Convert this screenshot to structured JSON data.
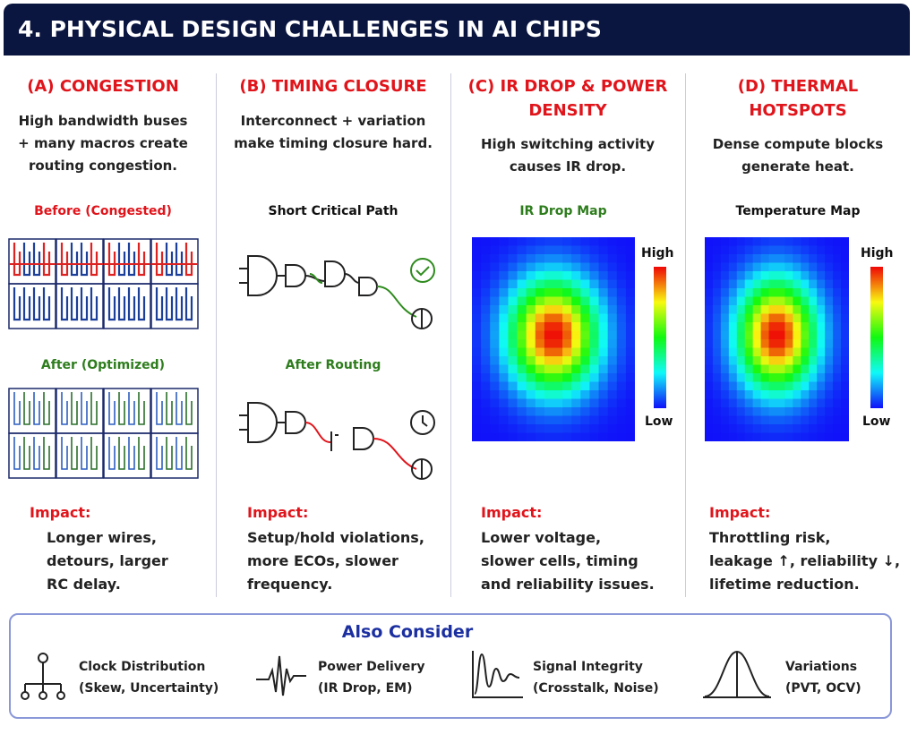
{
  "header": {
    "title": "4. PHYSICAL DESIGN CHALLENGES IN AI CHIPS"
  },
  "columns": [
    {
      "title": [
        "(A) CONGESTION"
      ],
      "description": [
        "High bandwidth buses",
        "+ many macros create",
        "routing congestion."
      ],
      "figures": [
        {
          "label": "Before (Congested)"
        },
        {
          "label": "After (Optimized)"
        }
      ],
      "impact_label": "Impact:",
      "impact": [
        "Longer wires,",
        "detours, larger",
        "RC delay."
      ]
    },
    {
      "title": [
        "(B) TIMING CLOSURE"
      ],
      "description": [
        "Interconnect + variation",
        "make timing closure hard."
      ],
      "figures": [
        {
          "label": "Short Critical Path"
        },
        {
          "label": "After Routing"
        }
      ],
      "impact_label": "Impact:",
      "impact": [
        "Setup/hold violations,",
        "more ECOs, slower",
        "frequency."
      ]
    },
    {
      "title": [
        "(C) IR DROP & POWER",
        "DENSITY"
      ],
      "description": [
        "High switching activity",
        "causes IR drop."
      ],
      "figures": [
        {
          "label": "IR Drop Map",
          "high": "High",
          "low": "Low"
        }
      ],
      "impact_label": "Impact:",
      "impact": [
        "Lower voltage,",
        "slower cells, timing",
        "and reliability issues."
      ]
    },
    {
      "title": [
        "(D) THERMAL",
        "HOTSPOTS"
      ],
      "description": [
        "Dense compute blocks",
        "generate heat."
      ],
      "figures": [
        {
          "label": "Temperature Map",
          "high": "High",
          "low": "Low"
        }
      ],
      "impact_label": "Impact:",
      "impact": [
        "Throttling risk,",
        "leakage ↑, reliability ↓,",
        "lifetime reduction."
      ]
    }
  ],
  "also_consider": {
    "title": "Also Consider",
    "items": [
      {
        "title": "Clock Distribution",
        "detail": "(Skew, Uncertainty)"
      },
      {
        "title": "Power Delivery",
        "detail": "(IR Drop, EM)"
      },
      {
        "title": "Signal Integrity",
        "detail": "(Crosstalk, Noise)"
      },
      {
        "title": "Variations",
        "detail": "(PVT, OCV)"
      }
    ]
  }
}
